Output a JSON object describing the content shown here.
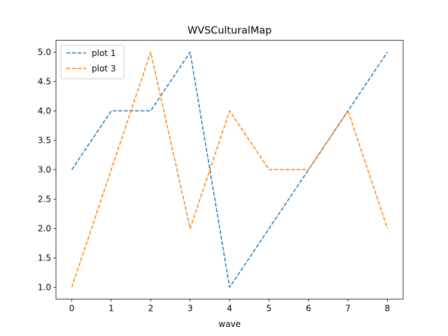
{
  "chart_data": {
    "type": "line",
    "title": "WVSCulturalMap",
    "xlabel": "wave",
    "ylabel": "",
    "x": [
      0,
      1,
      2,
      3,
      4,
      5,
      6,
      7,
      8
    ],
    "xlim": [
      -0.4,
      8.4
    ],
    "ylim": [
      0.8,
      5.2
    ],
    "xticks": [
      "0",
      "1",
      "2",
      "3",
      "4",
      "5",
      "6",
      "7",
      "8"
    ],
    "yticks": [
      "1.0",
      "1.5",
      "2.0",
      "2.5",
      "3.0",
      "3.5",
      "4.0",
      "4.5",
      "5.0"
    ],
    "grid": false,
    "legend_position": "upper-left",
    "series": [
      {
        "name": "plot 1",
        "values": [
          3,
          4,
          4,
          5,
          1,
          2,
          3,
          4,
          5
        ],
        "color": "#1f77b4",
        "linestyle": "dashed"
      },
      {
        "name": "plot 3",
        "values": [
          1,
          3,
          5,
          2,
          4,
          3,
          3,
          4,
          2
        ],
        "color": "#ff7f0e",
        "linestyle": "dashed"
      }
    ]
  }
}
